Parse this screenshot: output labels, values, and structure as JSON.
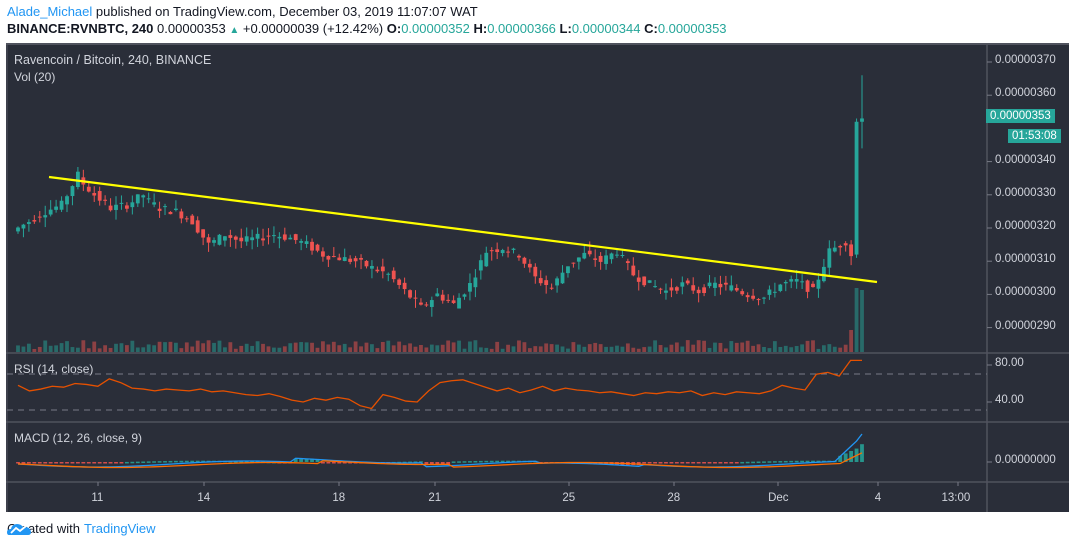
{
  "header": {
    "author": "Alade_Michael",
    "published_text": " published on TradingView.com, December 03, 2019 11:07:07 WAT",
    "symbol": "BINANCE:RVNBTC, 240",
    "last": "0.00000353",
    "change": "+0.00000039 (+12.42%)",
    "o_label": "O:",
    "o": "0.00000352",
    "h_label": "H:",
    "h": "0.00000366",
    "l_label": "L:",
    "l": "0.00000344",
    "c_label": "C:",
    "c": "0.00000353"
  },
  "legends": {
    "main": "Ravencoin / Bitcoin, 240, BINANCE",
    "vol": "Vol (20)",
    "rsi": "RSI (14, close)",
    "macd": "MACD (12, 26, close, 9)"
  },
  "price_tag": {
    "value": "0.00000353",
    "countdown": "01:53:08"
  },
  "footer": {
    "prefix": "Created with",
    "brand": "TradingView"
  },
  "colors": {
    "background": "#2a2e39",
    "up": "#26a69a",
    "down": "#ef5350",
    "trendline": "#ffff00",
    "rsi": "#e65100",
    "macd": "#2196f3",
    "signal": "#ff6d00",
    "grid_text": "#d1d4dc"
  },
  "chart_data": {
    "type": "candlestick",
    "title": "Ravencoin / Bitcoin, 240, BINANCE",
    "symbol": "BINANCE:RVNBTC",
    "interval": "240",
    "price_axis": {
      "ticks": [
        "0.00000370",
        "0.00000360",
        "0.00000340",
        "0.00000330",
        "0.00000320",
        "0.00000310",
        "0.00000300",
        "0.00000290"
      ],
      "range": [
        2.85e-06,
        3.75e-06
      ]
    },
    "time_axis": {
      "ticks": [
        "11",
        "14",
        "18",
        "21",
        "25",
        "28",
        "Dec",
        "4",
        "13:00"
      ]
    },
    "last_candle": {
      "open": 3.52e-06,
      "high": 3.66e-06,
      "low": 3.44e-06,
      "close": 3.53e-06,
      "change": 3.9e-07,
      "change_pct": 12.42
    },
    "price_path": [
      [
        3.19e-06,
        3.22e-06
      ],
      [
        3.22e-06,
        3.25e-06
      ],
      [
        3.25e-06,
        3.27e-06
      ],
      [
        3.27e-06,
        3.36e-06
      ],
      [
        3.35e-06,
        3.3e-06
      ],
      [
        3.3e-06,
        3.26e-06
      ],
      [
        3.26e-06,
        3.27e-06
      ],
      [
        3.27e-06,
        3.3e-06
      ],
      [
        3.29e-06,
        3.26e-06
      ],
      [
        3.26e-06,
        3.25e-06
      ],
      [
        3.25e-06,
        3.22e-06
      ],
      [
        3.22e-06,
        3.15e-06
      ],
      [
        3.15e-06,
        3.18e-06
      ],
      [
        3.18e-06,
        3.16e-06
      ],
      [
        3.16e-06,
        3.17e-06
      ],
      [
        3.17e-06,
        3.18e-06
      ],
      [
        3.18e-06,
        3.17e-06
      ],
      [
        3.17e-06,
        3.15e-06
      ],
      [
        3.15e-06,
        3.12e-06
      ],
      [
        3.12e-06,
        3.11e-06
      ],
      [
        3.11e-06,
        3.1e-06
      ],
      [
        3.1e-06,
        3.08e-06
      ],
      [
        3.08e-06,
        3.06e-06
      ],
      [
        3.06e-06,
        3.01e-06
      ],
      [
        3.01e-06,
        2.96e-06
      ],
      [
        2.96e-06,
        3e-06
      ],
      [
        3e-06,
        2.97e-06
      ],
      [
        2.97e-06,
        3.03e-06
      ],
      [
        3.03e-06,
        3.13e-06
      ],
      [
        3.13e-06,
        3.14e-06
      ],
      [
        3.14e-06,
        3.12e-06
      ],
      [
        3.12e-06,
        3.05e-06
      ],
      [
        3.05e-06,
        3.02e-06
      ],
      [
        3.02e-06,
        3.09e-06
      ],
      [
        3.09e-06,
        3.12e-06
      ],
      [
        3.12e-06,
        3.1e-06
      ],
      [
        3.1e-06,
        3.13e-06
      ],
      [
        3.13e-06,
        3.06e-06
      ],
      [
        3.06e-06,
        3.03e-06
      ],
      [
        3.03e-06,
        3.01e-06
      ],
      [
        3.01e-06,
        3.03e-06
      ],
      [
        3.03e-06,
        3.01e-06
      ],
      [
        3.01e-06,
        3.03e-06
      ],
      [
        3.03e-06,
        3.02e-06
      ],
      [
        3.02e-06,
        3e-06
      ],
      [
        3e-06,
        2.99e-06
      ],
      [
        2.99e-06,
        3.03e-06
      ],
      [
        3.03e-06,
        3.04e-06
      ],
      [
        3.04e-06,
        3.01e-06
      ],
      [
        3.01e-06,
        3.13e-06
      ],
      [
        3.13e-06,
        3.16e-06
      ],
      [
        3.16e-06,
        3.12e-06
      ],
      [
        3.12e-06,
        3.52e-06
      ],
      [
        3.52e-06,
        3.53e-06
      ]
    ],
    "trendline": {
      "from": [
        "Nov 9",
        3.36e-06
      ],
      "to": [
        "Dec 3",
        3.05e-06
      ],
      "color": "#ffff00"
    },
    "volume": {
      "label": "Vol (20)",
      "spike_at_end": true
    },
    "rsi": {
      "label": "RSI (14, close)",
      "ticks": [
        "80.00",
        "40.00"
      ],
      "bands": [
        70,
        30
      ],
      "values": [
        58,
        52,
        54,
        57,
        56,
        60,
        59,
        57,
        65,
        61,
        55,
        54,
        52,
        54,
        53,
        52,
        54,
        51,
        52,
        50,
        48,
        47,
        49,
        46,
        42,
        40,
        44,
        42,
        45,
        43,
        36,
        33,
        48,
        45,
        41,
        40,
        52,
        61,
        63,
        64,
        60,
        56,
        52,
        55,
        50,
        53,
        57,
        52,
        55,
        53,
        52,
        50,
        51,
        49,
        47,
        50,
        49,
        51,
        50,
        52,
        47,
        50,
        48,
        51,
        50,
        49,
        52,
        58,
        55,
        53,
        70,
        72,
        68,
        85,
        85
      ]
    },
    "macd": {
      "label": "MACD (12, 26, close, 9)",
      "ticks": [
        "0.00000000"
      ],
      "params": [
        12,
        26,
        9
      ]
    }
  }
}
